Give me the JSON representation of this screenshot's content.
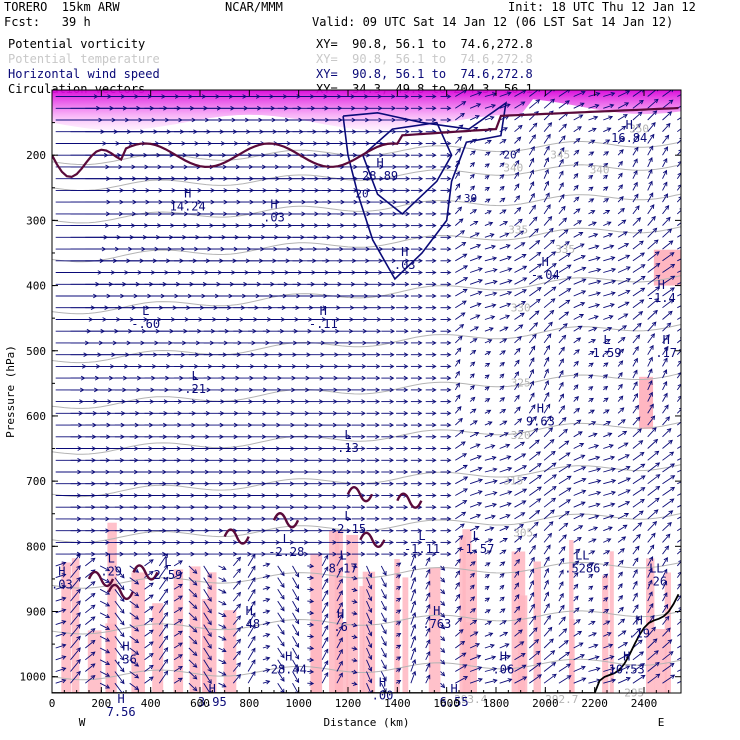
{
  "header": {
    "model": "TORERO  15km ARW",
    "org": "NCAR/MMM",
    "init": "Init: 18 UTC Thu 12 Jan 12",
    "fcst": "Fcst:   39 h",
    "valid": "Valid: 09 UTC Sat 14 Jan 12 (06 LST Sat 14 Jan 12)"
  },
  "fields": [
    {
      "name": "Potential vorticity",
      "xy": "XY=  90.8, 56.1 to  74.6,272.8",
      "color": "#000000"
    },
    {
      "name": "Potential temperature",
      "xy": "XY=  90.8, 56.1 to  74.6,272.8",
      "color": "#b4b4b4"
    },
    {
      "name": "Horizontal wind speed",
      "xy": "XY=  90.8, 56.1 to  74.6,272.8",
      "color": "#0a0a78"
    },
    {
      "name": "Circulation vectors",
      "xy": "XY=  34.3, 49.8 to 204.3, 56.1",
      "color": "#000000"
    }
  ],
  "chart_data": {
    "type": "cross-section",
    "xlabel": "Distance (km)",
    "ylabel": "Pressure (hPa)",
    "xlim": [
      0,
      2550
    ],
    "ylim": [
      1025,
      100
    ],
    "x_ticks": [
      "0",
      "200",
      "400",
      "600",
      "800",
      "1000",
      "1200",
      "1400",
      "1600",
      "1800",
      "2000",
      "2200",
      "2400"
    ],
    "y_ticks": [
      "200",
      "300",
      "400",
      "500",
      "600",
      "700",
      "800",
      "900",
      "1000"
    ],
    "x_end_labels": {
      "left": "W",
      "right": "E"
    },
    "colors": {
      "frame": "#000000",
      "theta": "#b4b4b4",
      "wind": "#0a0a78",
      "pv_shade": "#ffb6c1",
      "pv_upper": "#e040e0",
      "pv_contour": "#5a0a3a"
    },
    "theta_labels": [
      {
        "text": "350",
        "x": 2340,
        "p": 165
      },
      {
        "text": "345",
        "x": 2020,
        "p": 205
      },
      {
        "text": "340",
        "x": 1830,
        "p": 225
      },
      {
        "text": "340",
        "x": 2180,
        "p": 228
      },
      {
        "text": "335",
        "x": 1850,
        "p": 320
      },
      {
        "text": "335",
        "x": 2040,
        "p": 350
      },
      {
        "text": "330",
        "x": 1860,
        "p": 440
      },
      {
        "text": "325",
        "x": 1860,
        "p": 555
      },
      {
        "text": "320",
        "x": 1860,
        "p": 635
      },
      {
        "text": "315",
        "x": 1830,
        "p": 705
      },
      {
        "text": "305",
        "x": 1870,
        "p": 785
      },
      {
        "text": "295",
        "x": 2320,
        "p": 1030
      },
      {
        "text": "292.7",
        "x": 2000,
        "p": 1040
      },
      {
        "text": "293.4",
        "x": 1630,
        "p": 1040
      }
    ],
    "wind_labels": [
      {
        "text": "20",
        "x": 1830,
        "p": 205
      },
      {
        "text": "30",
        "x": 1670,
        "p": 272
      },
      {
        "text": "20",
        "x": 1230,
        "p": 265
      }
    ],
    "markers": [
      {
        "type": "H",
        "value": "16.84",
        "x": 2340,
        "p": 160
      },
      {
        "type": "H",
        "value": "28.89",
        "x": 1330,
        "p": 218
      },
      {
        "type": "H",
        "value": "14.24",
        "x": 550,
        "p": 265
      },
      {
        "type": "H",
        "value": ".03",
        "x": 900,
        "p": 282
      },
      {
        "type": "H",
        "value": ".03",
        "x": 1430,
        "p": 355
      },
      {
        "type": "H",
        "value": "-.04",
        "x": 2000,
        "p": 370
      },
      {
        "type": "L",
        "value": "-.60",
        "x": 380,
        "p": 445
      },
      {
        "type": "H",
        "value": "-.11",
        "x": 1100,
        "p": 445
      },
      {
        "type": "H",
        "value": "-1.4",
        "x": 2470,
        "p": 405
      },
      {
        "type": "L",
        "value": "1.59",
        "x": 2250,
        "p": 490
      },
      {
        "type": "H",
        "value": ".17",
        "x": 2490,
        "p": 490
      },
      {
        "type": "L",
        "value": ".21",
        "x": 580,
        "p": 545
      },
      {
        "type": "H",
        "value": "9.63",
        "x": 1980,
        "p": 595
      },
      {
        "type": "L",
        "value": ".13",
        "x": 1200,
        "p": 635
      },
      {
        "type": "L",
        "value": "-2.15",
        "x": 1200,
        "p": 760
      },
      {
        "type": "L",
        "value": "-2.28",
        "x": 950,
        "p": 795
      },
      {
        "type": "L",
        "value": "8.17",
        "x": 1180,
        "p": 820
      },
      {
        "type": "L",
        "value": "-1.11",
        "x": 1500,
        "p": 790
      },
      {
        "type": "L",
        "value": "-1.57",
        "x": 1720,
        "p": 790
      },
      {
        "type": "LL",
        "value": ".5286",
        "x": 2150,
        "p": 820
      },
      {
        "type": "LL",
        "value": ".26",
        "x": 2450,
        "p": 840
      },
      {
        "type": "L",
        "value": ".29",
        "x": 240,
        "p": 825
      },
      {
        "type": "L",
        "value": "2.59",
        "x": 470,
        "p": 830
      },
      {
        "type": "H",
        "value": ".03",
        "x": 40,
        "p": 845
      },
      {
        "type": "H",
        "value": ".48",
        "x": 800,
        "p": 905
      },
      {
        "type": "H",
        "value": ".6",
        "x": 1170,
        "p": 910
      },
      {
        "type": "H",
        "value": ".763",
        "x": 1560,
        "p": 905
      },
      {
        "type": "H",
        "value": ".19",
        "x": 2380,
        "p": 920
      },
      {
        "type": "H",
        "value": ".36",
        "x": 300,
        "p": 960
      },
      {
        "type": "H",
        "value": "28.44",
        "x": 960,
        "p": 975
      },
      {
        "type": "H",
        "value": ".06",
        "x": 1830,
        "p": 975
      },
      {
        "type": "H",
        "value": "10.53",
        "x": 2330,
        "p": 975
      },
      {
        "type": "H",
        "value": ".00",
        "x": 1340,
        "p": 1015
      },
      {
        "type": "H",
        "value": "6.55",
        "x": 1630,
        "p": 1025
      },
      {
        "type": "H",
        "value": "7.56",
        "x": 280,
        "p": 1040
      },
      {
        "type": "H",
        "value": "3.95",
        "x": 650,
        "p": 1025
      }
    ]
  }
}
